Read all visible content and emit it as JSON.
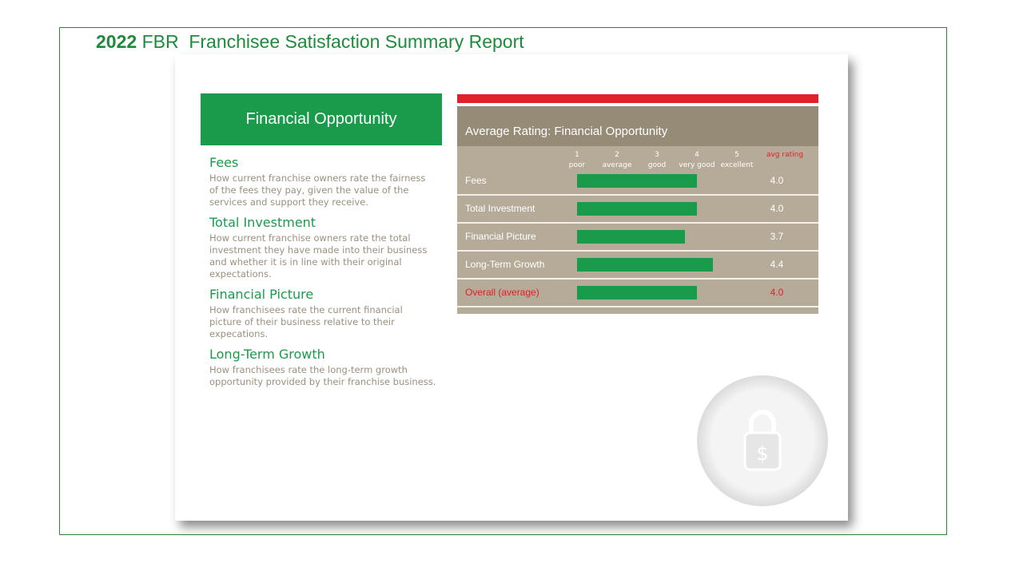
{
  "header": {
    "year": "2022",
    "title": "FBR  Franchisee Satisfaction Summary Report"
  },
  "panel": {
    "title": "Financial Opportunity"
  },
  "sections": [
    {
      "heading": "Fees",
      "text": "How current franchise owners rate the fairness of the fees they pay, given the value of the services and support they receive."
    },
    {
      "heading": "Total Investment",
      "text": "How current franchise owners rate the total investment they have made into their business and whether it is in line with their original expectations."
    },
    {
      "heading": "Financial Picture",
      "text": "How franchisees rate the current financial picture of their business relative to their expecations."
    },
    {
      "heading": "Long-Term Growth",
      "text": "How franchisees rate the long-term growth opportunity provided by their franchise business."
    }
  ],
  "chart_data": {
    "type": "bar",
    "title": "Average Rating: Financial Opportunity",
    "categories": [
      "Fees",
      "Total Investment",
      "Financial Picture",
      "Long-Term Growth",
      "Overall (average)"
    ],
    "values": [
      4.0,
      4.0,
      3.7,
      4.4,
      4.0
    ],
    "value_labels": [
      "4.0",
      "4.0",
      "3.7",
      "4.4",
      "4.0"
    ],
    "color": "#1a9b4b",
    "xlim": [
      1,
      5
    ],
    "xticks": [
      1,
      2,
      3,
      4,
      5
    ],
    "xtick_descriptions": [
      "poor",
      "average",
      "good",
      "very good",
      "excellent"
    ],
    "value_column_label": "avg rating"
  }
}
